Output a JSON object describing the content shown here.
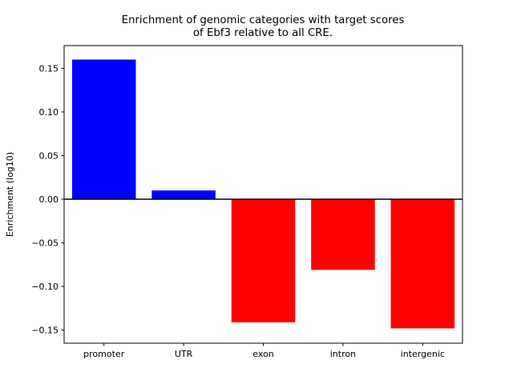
{
  "chart_data": {
    "type": "bar",
    "title": "Enrichment of genomic categories with target scores of Ebf3 relative to all CRE.",
    "title_line1": "Enrichment of genomic categories with target scores",
    "title_line2": "of Ebf3 relative to all CRE.",
    "ylabel": "Enrichment (log10)",
    "xlabel": "",
    "categories": [
      "promoter",
      "UTR",
      "exon",
      "intron",
      "intergenic"
    ],
    "values": [
      0.16,
      0.01,
      -0.141,
      -0.081,
      -0.148
    ],
    "bar_colors": [
      "#0000ff",
      "#0000ff",
      "#ff0000",
      "#ff0000",
      "#ff0000"
    ],
    "positive_color": "#0000ff",
    "negative_color": "#ff0000",
    "yticks": [
      -0.15,
      -0.1,
      -0.05,
      0.0,
      0.05,
      0.1,
      0.15
    ],
    "ytick_labels": [
      "−0.15",
      "−0.10",
      "−0.05",
      "0.00",
      "0.05",
      "0.10",
      "0.15"
    ],
    "ylim": [
      -0.165,
      0.176
    ],
    "zero_line": true,
    "grid": false,
    "legend": "none",
    "axis_color": "#000000",
    "background_color": "#ffffff"
  }
}
